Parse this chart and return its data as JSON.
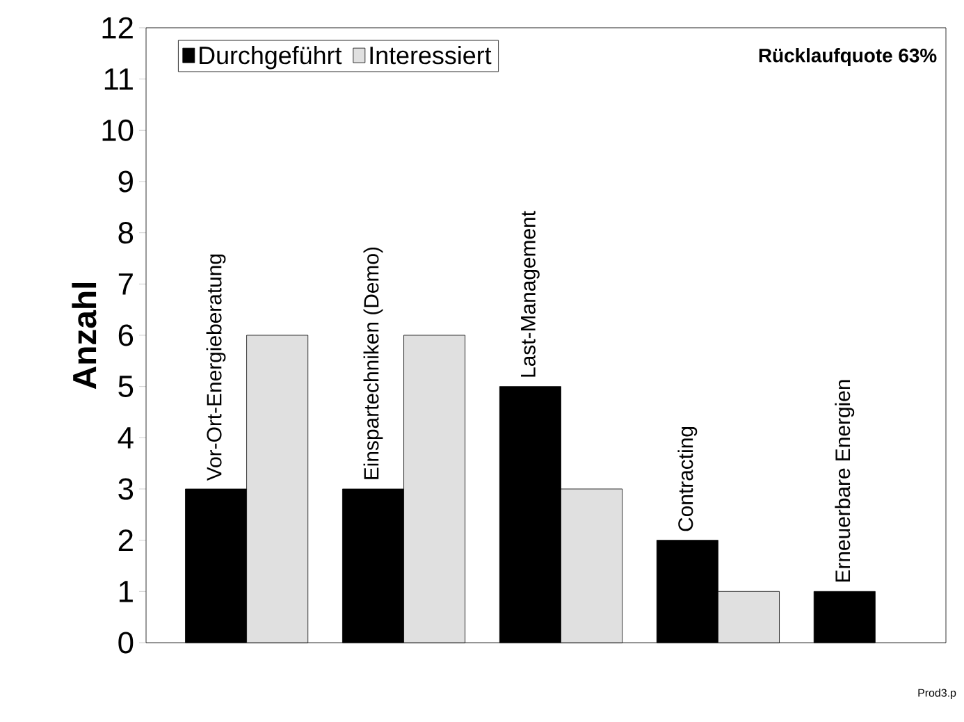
{
  "chart_data": {
    "type": "bar",
    "ylabel": "Anzahl",
    "categories": [
      "Vor-Ort-Energieberatung",
      "Einspartechniken (Demo)",
      "Last-Management",
      "Contracting",
      "Erneuerbare Energien"
    ],
    "series": [
      {
        "name": "Durchgeführt",
        "color": "#000000",
        "values": [
          3,
          3,
          5,
          2,
          1
        ]
      },
      {
        "name": "Interessiert",
        "color": "#e0e0e0",
        "values": [
          6,
          6,
          3,
          1,
          0
        ]
      }
    ],
    "ylim": [
      0,
      12
    ],
    "yticks": [
      0,
      1,
      2,
      3,
      4,
      5,
      6,
      7,
      8,
      9,
      10,
      11,
      12
    ],
    "legend": "top left",
    "grid": false,
    "annotations": [
      "Rücklaufquote 63%",
      "Prod3.p"
    ]
  }
}
